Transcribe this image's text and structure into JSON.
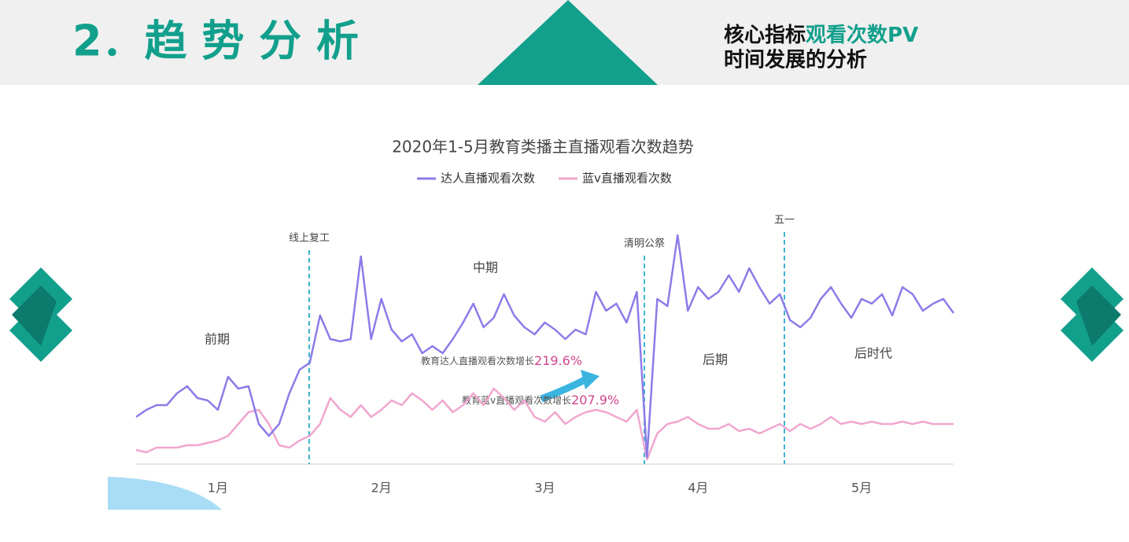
{
  "header": {
    "title": "2．趋 势 分 析",
    "subtitle_parts": [
      "核心指标",
      "观看次数PV",
      "时间发展的分析"
    ]
  },
  "chart_data": {
    "type": "line",
    "title": "2020年1-5月教育类播主直播观看次数趋势",
    "categories": [
      null,
      null,
      null,
      null,
      null,
      null,
      null,
      null,
      "1月",
      null,
      null,
      null,
      null,
      null,
      null,
      null,
      null,
      null,
      null,
      null,
      null,
      null,
      null,
      null,
      "2月",
      null,
      null,
      null,
      null,
      null,
      null,
      null,
      null,
      null,
      null,
      null,
      null,
      null,
      null,
      null,
      "3月",
      null,
      null,
      null,
      null,
      null,
      null,
      null,
      null,
      null,
      null,
      null,
      null,
      null,
      null,
      "4月",
      null,
      null,
      null,
      null,
      null,
      null,
      null,
      null,
      null,
      null,
      null,
      null,
      null,
      null,
      null,
      "5月",
      null,
      null,
      null,
      null,
      null,
      null,
      null,
      null,
      null
    ],
    "ylim": [
      0,
      100
    ],
    "series": [
      {
        "name": "达人直播观看次数",
        "color": "#8b7ce8",
        "values": [
          20,
          23,
          25,
          25,
          30,
          33,
          28,
          27,
          23,
          37,
          32,
          33,
          17,
          12,
          17,
          30,
          40,
          43,
          63,
          53,
          52,
          53,
          88,
          53,
          70,
          57,
          52,
          55,
          47,
          50,
          47,
          53,
          60,
          68,
          58,
          62,
          72,
          63,
          58,
          55,
          60,
          57,
          53,
          57,
          55,
          73,
          65,
          68,
          60,
          73,
          3,
          70,
          67,
          97,
          65,
          75,
          70,
          73,
          80,
          73,
          83,
          75,
          68,
          72,
          61,
          58,
          62,
          70,
          75,
          68,
          62,
          70,
          68,
          72,
          63,
          75,
          72,
          65,
          68,
          70,
          64
        ]
      },
      {
        "name": "蓝v直播观看次数",
        "color": "#f0a6cf",
        "values": [
          6,
          5,
          7,
          7,
          7,
          8,
          8,
          9,
          10,
          12,
          17,
          22,
          23,
          17,
          8,
          7,
          10,
          12,
          17,
          28,
          23,
          20,
          25,
          20,
          23,
          27,
          25,
          30,
          27,
          23,
          27,
          22,
          25,
          30,
          25,
          32,
          28,
          23,
          27,
          20,
          18,
          22,
          17,
          20,
          22,
          23,
          22,
          20,
          18,
          23,
          2,
          13,
          17,
          18,
          20,
          17,
          15,
          15,
          17,
          14,
          15,
          13,
          15,
          17,
          14,
          17,
          15,
          17,
          20,
          17,
          18,
          17,
          18,
          17,
          17,
          18,
          17,
          18,
          17,
          17,
          17
        ]
      }
    ],
    "annotations": [
      "线上复工",
      "清明公祭",
      "五一",
      "前期",
      "中期",
      "后期",
      "后时代"
    ],
    "growth": [
      {
        "text": "教育达人直播观看次数增长",
        "value": "219.6%"
      },
      {
        "text": "教育蓝v直播观看次数增长",
        "value": "207.9%"
      }
    ]
  }
}
